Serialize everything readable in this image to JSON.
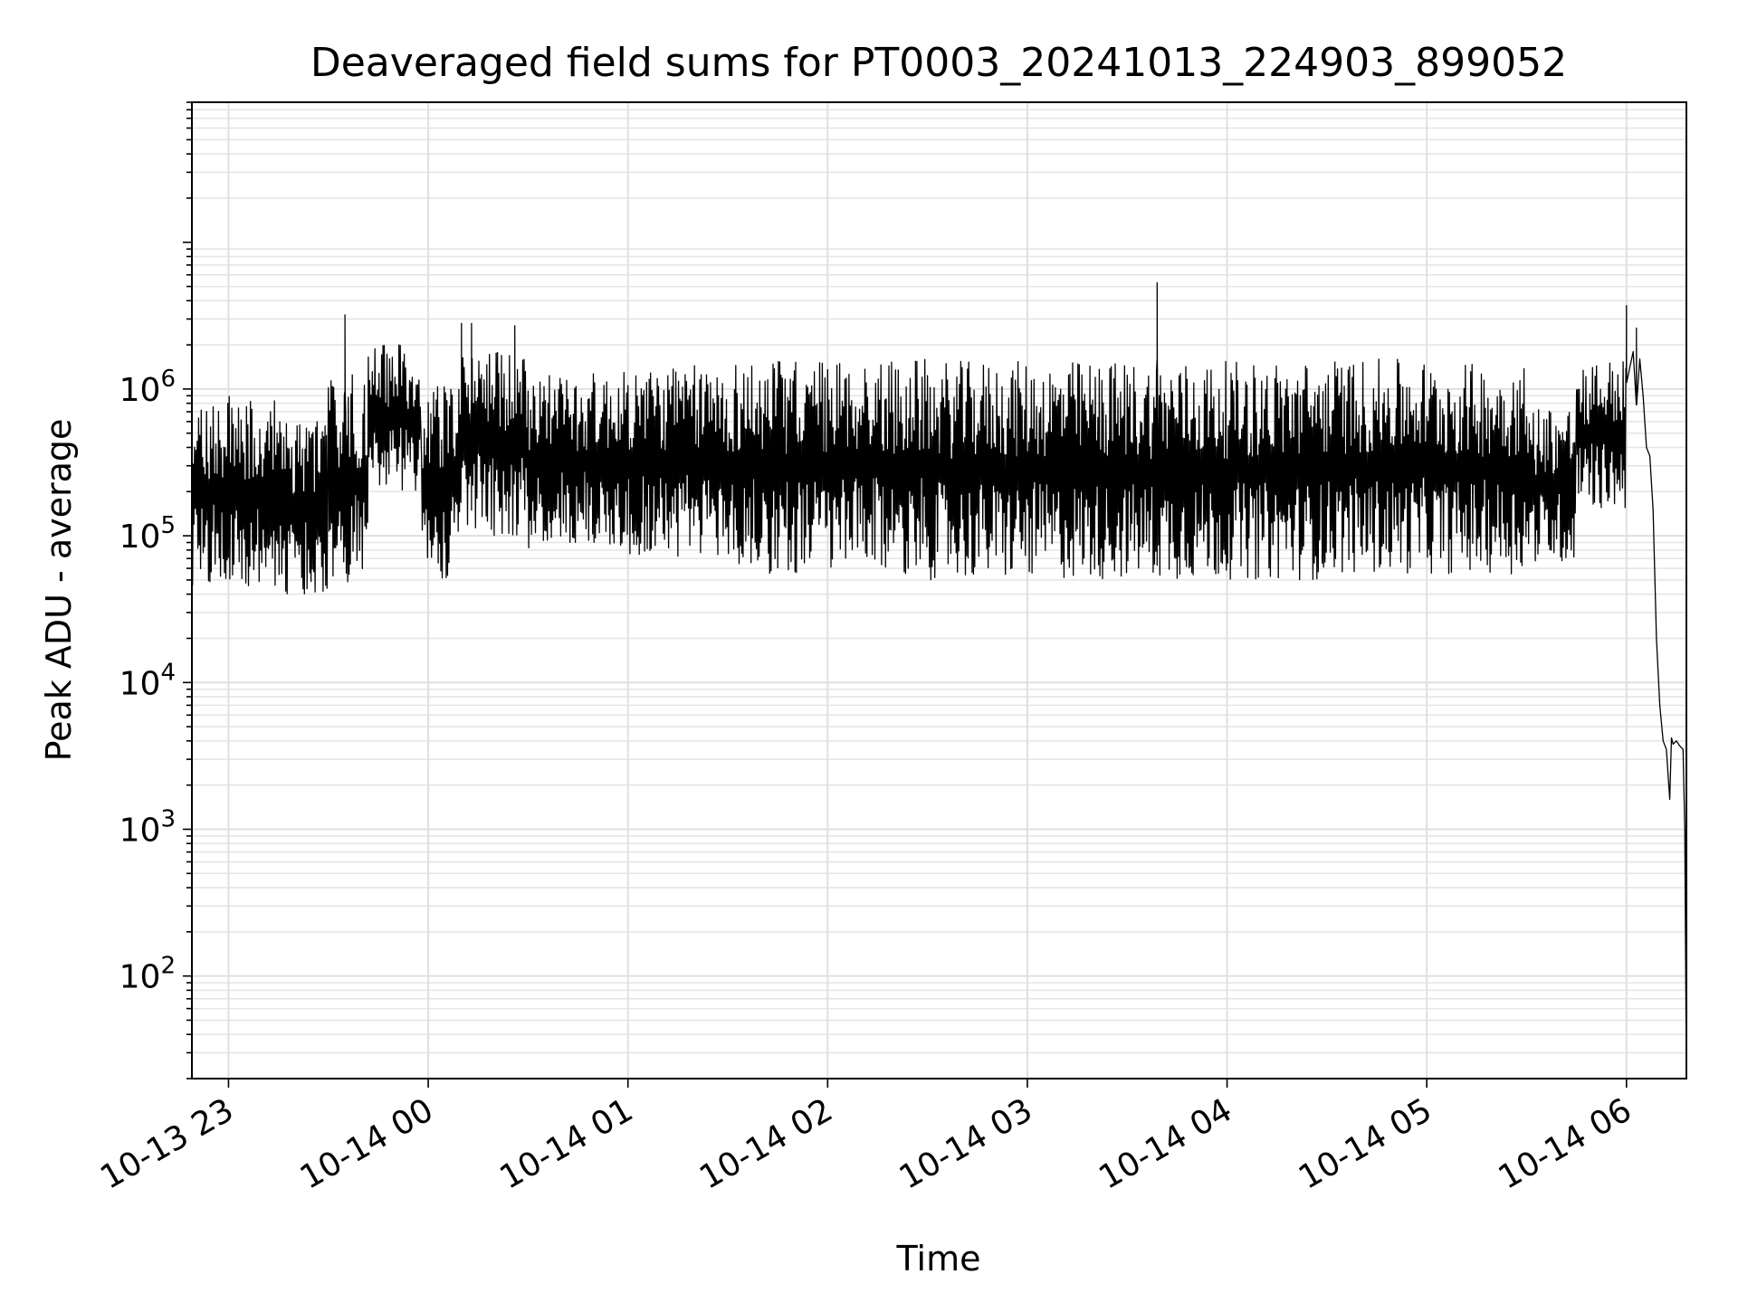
{
  "chart_data": {
    "type": "line",
    "title": "Deaveraged field sums for PT0003_20241013_224903_899052",
    "xlabel": "Time",
    "ylabel": "Peak ADU - average",
    "yscale": "log",
    "ylim": [
      20,
      90000000
    ],
    "xlim": [
      "2024-10-13 22:49",
      "2024-10-14 06:18"
    ],
    "grid": "major and minor, light gray",
    "line_color": "#000000",
    "x_ticks": [
      {
        "value": "2024-10-13 23:00",
        "label": "10-13 23"
      },
      {
        "value": "2024-10-14 00:00",
        "label": "10-14 00"
      },
      {
        "value": "2024-10-14 01:00",
        "label": "10-14 01"
      },
      {
        "value": "2024-10-14 02:00",
        "label": "10-14 02"
      },
      {
        "value": "2024-10-14 03:00",
        "label": "10-14 03"
      },
      {
        "value": "2024-10-14 04:00",
        "label": "10-14 04"
      },
      {
        "value": "2024-10-14 05:00",
        "label": "10-14 05"
      },
      {
        "value": "2024-10-14 06:00",
        "label": "10-14 06"
      }
    ],
    "y_ticks": [
      {
        "value": 100,
        "base": "10",
        "exp": "2"
      },
      {
        "value": 1000,
        "base": "10",
        "exp": "3"
      },
      {
        "value": 10000,
        "base": "10",
        "exp": "4"
      },
      {
        "value": 100000,
        "base": "10",
        "exp": "5"
      },
      {
        "value": 1000000,
        "base": "10",
        "exp": "6"
      }
    ],
    "series": [
      {
        "style": "dense oscillation between low and high envelope",
        "segments": [
          {
            "start": "2024-10-13 22:49",
            "end": "2024-10-13 23:15",
            "low": 45000,
            "high": 900000
          },
          {
            "start": "2024-10-13 23:15",
            "end": "2024-10-13 23:30",
            "low": 40000,
            "high": 600000
          },
          {
            "start": "2024-10-13 23:30",
            "end": "2024-10-13 23:42",
            "low": 45000,
            "high": 1300000
          },
          {
            "start": "2024-10-13 23:42",
            "end": "2024-10-13 23:58",
            "low": 200000,
            "high": 2000000
          },
          {
            "start": "2024-10-13 23:58",
            "end": "2024-10-14 00:10",
            "low": 45000,
            "high": 1100000
          },
          {
            "start": "2024-10-14 00:10",
            "end": "2024-10-14 00:30",
            "low": 100000,
            "high": 1800000
          },
          {
            "start": "2024-10-14 00:30",
            "end": "2024-10-14 01:00",
            "low": 80000,
            "high": 1300000
          },
          {
            "start": "2024-10-14 01:00",
            "end": "2024-10-14 01:30",
            "low": 70000,
            "high": 1450000
          },
          {
            "start": "2024-10-14 01:30",
            "end": "2024-10-14 02:30",
            "low": 55000,
            "high": 1600000
          },
          {
            "start": "2024-10-14 02:30",
            "end": "2024-10-14 04:30",
            "low": 50000,
            "high": 1550000
          },
          {
            "start": "2024-10-14 04:30",
            "end": "2024-10-14 05:00",
            "low": 55000,
            "high": 1600000
          },
          {
            "start": "2024-10-14 05:00",
            "end": "2024-10-14 05:30",
            "low": 55000,
            "high": 1500000
          },
          {
            "start": "2024-10-14 05:30",
            "end": "2024-10-14 05:45",
            "low": 65000,
            "high": 800000
          },
          {
            "start": "2024-10-14 05:45",
            "end": "2024-10-14 06:00",
            "low": 150000,
            "high": 1600000
          }
        ],
        "spikes": [
          {
            "x": "2024-10-13 23:35",
            "y": 3200000
          },
          {
            "x": "2024-10-14 00:10",
            "y": 2800000
          },
          {
            "x": "2024-10-14 00:13",
            "y": 2800000
          },
          {
            "x": "2024-10-14 00:26",
            "y": 2700000
          },
          {
            "x": "2024-10-14 03:39",
            "y": 5300000
          },
          {
            "x": "2024-10-14 06:00",
            "y": 3700000
          },
          {
            "x": "2024-10-14 06:03",
            "y": 2600000
          }
        ],
        "tail": [
          {
            "x": "2024-10-14 06:00",
            "y": 1500000
          },
          {
            "x": "2024-10-14 06:02",
            "y": 1800000
          },
          {
            "x": "2024-10-14 06:04",
            "y": 1600000
          },
          {
            "x": "2024-10-14 06:05",
            "y": 900000
          },
          {
            "x": "2024-10-14 06:06",
            "y": 400000
          },
          {
            "x": "2024-10-14 06:07",
            "y": 350000
          },
          {
            "x": "2024-10-14 06:08",
            "y": 150000
          },
          {
            "x": "2024-10-14 06:09",
            "y": 20000
          },
          {
            "x": "2024-10-14 06:10",
            "y": 7000
          },
          {
            "x": "2024-10-14 06:11",
            "y": 4000
          },
          {
            "x": "2024-10-14 06:12",
            "y": 3500
          },
          {
            "x": "2024-10-14 06:13",
            "y": 1600
          },
          {
            "x": "2024-10-14 06:13.5",
            "y": 4200
          },
          {
            "x": "2024-10-14 06:14",
            "y": 3800
          },
          {
            "x": "2024-10-14 06:15",
            "y": 4000
          },
          {
            "x": "2024-10-14 06:16",
            "y": 3700
          },
          {
            "x": "2024-10-14 06:17",
            "y": 3500
          },
          {
            "x": "2024-10-14 06:17.5",
            "y": 1000
          },
          {
            "x": "2024-10-14 06:18",
            "y": 20
          }
        ]
      }
    ]
  }
}
